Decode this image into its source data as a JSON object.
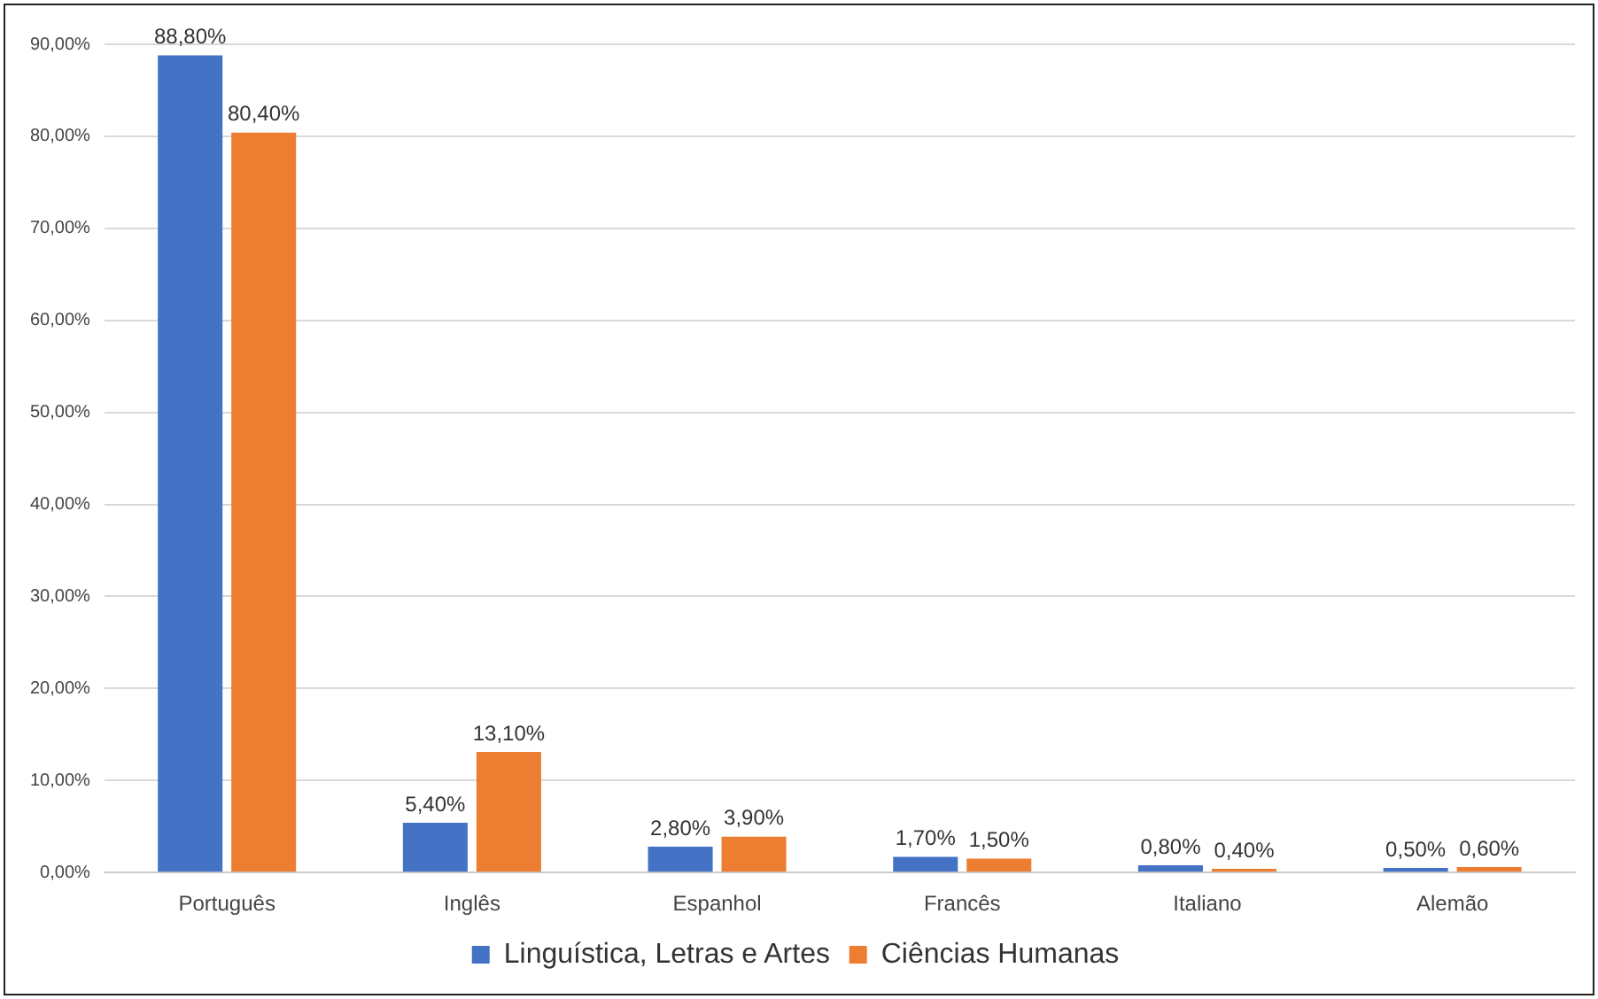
{
  "chart_data": {
    "type": "bar",
    "categories": [
      "Português",
      "Inglês",
      "Espanhol",
      "Francês",
      "Italiano",
      "Alemão"
    ],
    "series": [
      {
        "name": "Linguística, Letras e Artes",
        "color": "#4472c4",
        "values": [
          88.8,
          5.4,
          2.8,
          1.7,
          0.8,
          0.5
        ],
        "value_labels": [
          "88,80%",
          "5,40%",
          "2,80%",
          "1,70%",
          "0,80%",
          "0,50%"
        ]
      },
      {
        "name": "Ciências Humanas",
        "color": "#ed7d31",
        "values": [
          80.4,
          13.1,
          3.9,
          1.5,
          0.4,
          0.6
        ],
        "value_labels": [
          "80,40%",
          "13,10%",
          "3,90%",
          "1,50%",
          "0,40%",
          "0,60%"
        ]
      }
    ],
    "ylim": [
      0,
      90
    ],
    "yticks": [
      {
        "value": 0,
        "label": "0,00%"
      },
      {
        "value": 10,
        "label": "10,00%"
      },
      {
        "value": 20,
        "label": "20,00%"
      },
      {
        "value": 30,
        "label": "30,00%"
      },
      {
        "value": 40,
        "label": "40,00%"
      },
      {
        "value": 50,
        "label": "50,00%"
      },
      {
        "value": 60,
        "label": "60,00%"
      },
      {
        "value": 70,
        "label": "70,00%"
      },
      {
        "value": 80,
        "label": "80,00%"
      },
      {
        "value": 90,
        "label": "90,00%"
      }
    ],
    "grid": "y",
    "legend": "bottom"
  }
}
